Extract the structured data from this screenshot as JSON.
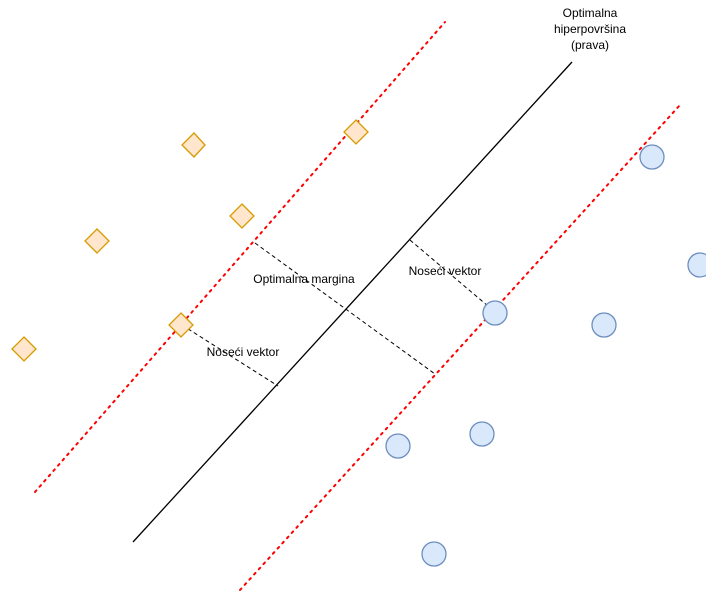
{
  "labels": {
    "hyperplane_line1": "Optimalna",
    "hyperplane_line2": "hiperpovršina",
    "hyperplane_line3": "(prava)",
    "margin": "Optimalna margina",
    "support_vector_left": "Noseći vektor",
    "support_vector_right": "Noseći vektor"
  },
  "colors": {
    "hyperplane": "#000000",
    "margin_boundary": "#ff0000",
    "measure_dash": "#000000",
    "diamond_fill": "#ffe6cc",
    "diamond_stroke": "#d79b00",
    "circle_fill": "#dae8fc",
    "circle_stroke": "#6c8ebf"
  }
}
